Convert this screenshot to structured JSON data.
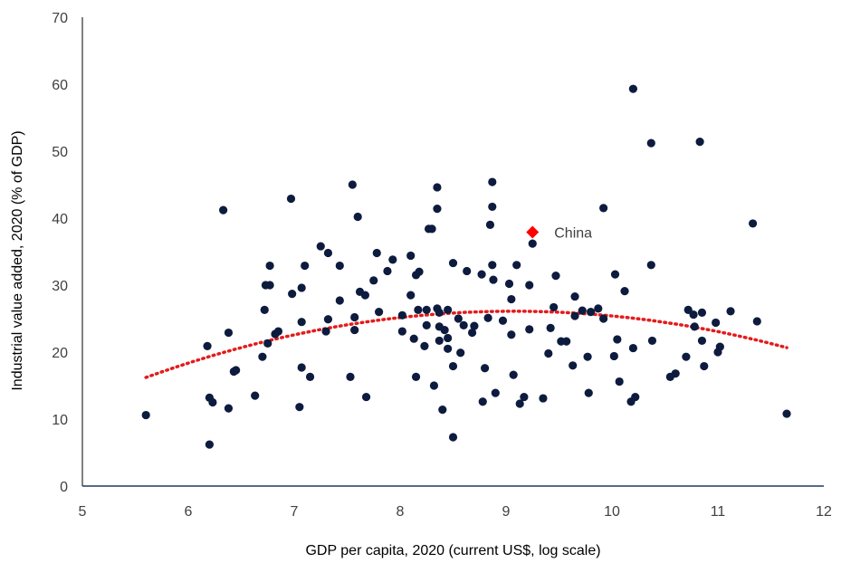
{
  "chart_data": {
    "type": "scatter",
    "title": "",
    "xlabel": "GDP per capita, 2020 (current US$, log scale)",
    "ylabel": "Industrial value added, 2020 (% of GDP)",
    "xlim": [
      5,
      12
    ],
    "ylim": [
      0,
      70
    ],
    "xticks": [
      5,
      6,
      7,
      8,
      9,
      10,
      11,
      12
    ],
    "yticks": [
      0,
      10,
      20,
      30,
      40,
      50,
      60,
      70
    ],
    "grid": false,
    "legend": "none",
    "colors": {
      "points": "#0d1b3e",
      "highlight": "#ff0000",
      "trend": "#e31b1b",
      "axis": "#1f3864"
    },
    "highlight": {
      "label": "China",
      "x": 9.25,
      "y": 37.9
    },
    "trendline": {
      "type": "polynomial",
      "degree": 2,
      "x_range": [
        5.6,
        11.65
      ],
      "coefficients": [
        -41.4,
        14.88,
        -0.82
      ]
    },
    "points": [
      [
        5.6,
        10.6
      ],
      [
        6.18,
        20.9
      ],
      [
        6.2,
        6.2
      ],
      [
        6.2,
        13.2
      ],
      [
        6.23,
        12.5
      ],
      [
        6.33,
        41.2
      ],
      [
        6.38,
        11.6
      ],
      [
        6.38,
        22.9
      ],
      [
        6.43,
        17.1
      ],
      [
        6.45,
        17.3
      ],
      [
        6.63,
        13.5
      ],
      [
        6.7,
        19.3
      ],
      [
        6.72,
        26.3
      ],
      [
        6.73,
        30.0
      ],
      [
        6.75,
        21.3
      ],
      [
        6.77,
        32.9
      ],
      [
        6.77,
        30.0
      ],
      [
        6.82,
        22.7
      ],
      [
        6.85,
        23.1
      ],
      [
        6.97,
        42.9
      ],
      [
        6.98,
        28.7
      ],
      [
        7.05,
        11.8
      ],
      [
        7.07,
        17.7
      ],
      [
        7.07,
        29.6
      ],
      [
        7.07,
        24.5
      ],
      [
        7.1,
        32.9
      ],
      [
        7.15,
        16.3
      ],
      [
        7.25,
        35.8
      ],
      [
        7.3,
        23.1
      ],
      [
        7.32,
        34.8
      ],
      [
        7.32,
        24.9
      ],
      [
        7.43,
        27.7
      ],
      [
        7.43,
        32.9
      ],
      [
        7.53,
        16.3
      ],
      [
        7.55,
        45.0
      ],
      [
        7.57,
        23.3
      ],
      [
        7.6,
        40.2
      ],
      [
        7.57,
        25.2
      ],
      [
        7.62,
        29.0
      ],
      [
        7.67,
        28.5
      ],
      [
        7.68,
        13.3
      ],
      [
        7.75,
        30.7
      ],
      [
        7.78,
        34.8
      ],
      [
        7.8,
        26.0
      ],
      [
        7.88,
        32.1
      ],
      [
        7.93,
        33.8
      ],
      [
        8.02,
        25.5
      ],
      [
        8.02,
        23.1
      ],
      [
        8.1,
        34.4
      ],
      [
        8.1,
        28.5
      ],
      [
        8.13,
        22.0
      ],
      [
        8.15,
        16.3
      ],
      [
        8.15,
        31.5
      ],
      [
        8.17,
        26.3
      ],
      [
        8.18,
        32.0
      ],
      [
        8.23,
        20.9
      ],
      [
        8.25,
        24.0
      ],
      [
        8.25,
        26.3
      ],
      [
        8.27,
        38.4
      ],
      [
        8.3,
        38.4
      ],
      [
        8.32,
        15.0
      ],
      [
        8.35,
        44.6
      ],
      [
        8.35,
        41.4
      ],
      [
        8.35,
        26.5
      ],
      [
        8.37,
        25.9
      ],
      [
        8.37,
        21.7
      ],
      [
        8.37,
        23.8
      ],
      [
        8.4,
        11.4
      ],
      [
        8.42,
        23.3
      ],
      [
        8.45,
        22.1
      ],
      [
        8.45,
        26.3
      ],
      [
        8.45,
        20.5
      ],
      [
        8.5,
        33.3
      ],
      [
        8.5,
        7.3
      ],
      [
        8.5,
        17.9
      ],
      [
        8.55,
        25.0
      ],
      [
        8.57,
        19.9
      ],
      [
        8.6,
        24.0
      ],
      [
        8.63,
        32.1
      ],
      [
        8.68,
        22.9
      ],
      [
        8.7,
        23.9
      ],
      [
        8.77,
        31.6
      ],
      [
        8.78,
        12.6
      ],
      [
        8.8,
        17.6
      ],
      [
        8.83,
        25.1
      ],
      [
        8.85,
        39.0
      ],
      [
        8.87,
        41.7
      ],
      [
        8.87,
        45.4
      ],
      [
        8.87,
        33.0
      ],
      [
        8.88,
        30.8
      ],
      [
        8.9,
        13.9
      ],
      [
        8.97,
        24.7
      ],
      [
        9.03,
        30.2
      ],
      [
        9.05,
        27.9
      ],
      [
        9.05,
        22.6
      ],
      [
        9.07,
        16.6
      ],
      [
        9.1,
        33.0
      ],
      [
        9.13,
        12.3
      ],
      [
        9.17,
        13.3
      ],
      [
        9.22,
        23.4
      ],
      [
        9.22,
        30.0
      ],
      [
        9.25,
        36.2
      ],
      [
        9.35,
        13.1
      ],
      [
        9.4,
        19.8
      ],
      [
        9.42,
        23.6
      ],
      [
        9.45,
        26.7
      ],
      [
        9.47,
        31.4
      ],
      [
        9.52,
        21.6
      ],
      [
        9.57,
        21.6
      ],
      [
        9.63,
        18.0
      ],
      [
        9.65,
        25.4
      ],
      [
        9.65,
        28.3
      ],
      [
        9.72,
        26.2
      ],
      [
        9.77,
        19.3
      ],
      [
        9.78,
        13.9
      ],
      [
        9.8,
        26.0
      ],
      [
        9.87,
        26.5
      ],
      [
        9.92,
        41.5
      ],
      [
        9.92,
        25.0
      ],
      [
        10.02,
        19.4
      ],
      [
        10.03,
        31.6
      ],
      [
        10.05,
        21.9
      ],
      [
        10.07,
        15.6
      ],
      [
        10.12,
        29.1
      ],
      [
        10.18,
        12.6
      ],
      [
        10.2,
        59.3
      ],
      [
        10.2,
        20.6
      ],
      [
        10.22,
        13.3
      ],
      [
        10.37,
        33.0
      ],
      [
        10.37,
        51.2
      ],
      [
        10.38,
        21.7
      ],
      [
        10.55,
        16.3
      ],
      [
        10.6,
        16.8
      ],
      [
        10.7,
        19.3
      ],
      [
        10.72,
        26.3
      ],
      [
        10.77,
        25.6
      ],
      [
        10.78,
        23.8
      ],
      [
        10.83,
        51.4
      ],
      [
        10.85,
        25.9
      ],
      [
        10.85,
        21.7
      ],
      [
        10.87,
        17.9
      ],
      [
        10.98,
        24.4
      ],
      [
        11.02,
        20.8
      ],
      [
        11.0,
        20.0
      ],
      [
        11.12,
        26.1
      ],
      [
        11.33,
        39.2
      ],
      [
        11.37,
        24.6
      ],
      [
        11.65,
        10.8
      ]
    ]
  }
}
